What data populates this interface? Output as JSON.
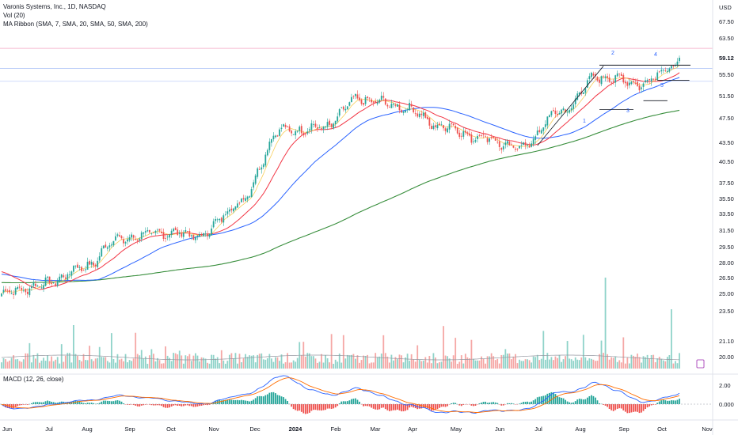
{
  "header": {
    "title": "Varonis Systems, Inc., 1D, NASDAQ",
    "vol_label": "Vol (20)",
    "ma_label": "MA Ribbon (SMA, 7, SMA, 20, SMA, 50, SMA, 200)",
    "macd_label": "MACD (12, 26, close)",
    "currency": "USD"
  },
  "colors": {
    "up": "#26a69a",
    "down": "#ef5350",
    "sma7": "#f7c948",
    "sma20": "#f23645",
    "sma50": "#2962ff",
    "sma200": "#388e3c",
    "macd": "#2962ff",
    "signal": "#ff6d00",
    "resistance": "#131722"
  },
  "chart_data": {
    "type": "candlestick",
    "title": "Varonis Systems, Inc., 1D, NASDAQ",
    "price_ticks": [
      67.5,
      63.5,
      59.12,
      55.5,
      51.5,
      47.5,
      43.5,
      40.5,
      37.5,
      35.5,
      33.5,
      31.5,
      29.5,
      28.0,
      26.5,
      25.0,
      23.5,
      21.1,
      20.0
    ],
    "current_price": 59.12,
    "macd_ticks": [
      2.0,
      0.0
    ],
    "x_ticks": [
      "Jun",
      "Jul",
      "Aug",
      "Sep",
      "Oct",
      "Nov",
      "Dec",
      "2024",
      "Feb",
      "Mar",
      "Apr",
      "May",
      "Jun",
      "Jul",
      "Aug",
      "Sep",
      "Oct",
      "Nov"
    ],
    "monthly_close": [
      {
        "month": "Jun",
        "close": 25.8
      },
      {
        "month": "Jul",
        "close": 27.4
      },
      {
        "month": "Aug",
        "close": 30.5
      },
      {
        "month": "Sep",
        "close": 31.2
      },
      {
        "month": "Oct",
        "close": 30.9
      },
      {
        "month": "Nov",
        "close": 35.0
      },
      {
        "month": "Dec",
        "close": 45.4
      },
      {
        "month": "2024",
        "close": 45.8
      },
      {
        "month": "Feb",
        "close": 50.9
      },
      {
        "month": "Mar",
        "close": 49.6
      },
      {
        "month": "Apr",
        "close": 46.2
      },
      {
        "month": "May",
        "close": 44.3
      },
      {
        "month": "Jun",
        "close": 42.6
      },
      {
        "month": "Jul",
        "close": 48.5
      },
      {
        "month": "Aug",
        "close": 55.2
      },
      {
        "month": "Sep",
        "close": 53.8
      },
      {
        "month": "Oct",
        "close": 57.8
      }
    ],
    "wave_labels": [
      "1",
      "2",
      "3",
      "4",
      "5"
    ],
    "resistance_level": 57.5,
    "legend": [
      "SMA 7",
      "SMA 20",
      "SMA 50",
      "SMA 200"
    ]
  }
}
